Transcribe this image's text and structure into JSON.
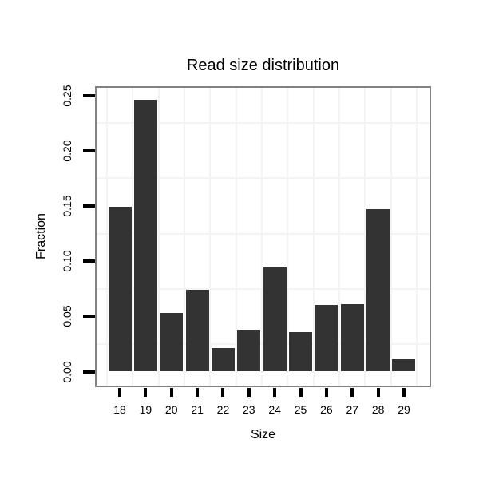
{
  "page": {
    "background_color": "#ffffff"
  },
  "chart_data": {
    "type": "bar",
    "title": "Read size distribution",
    "xlabel": "Size",
    "ylabel": "Fraction",
    "categories": [
      "18",
      "19",
      "20",
      "21",
      "22",
      "23",
      "24",
      "25",
      "26",
      "27",
      "28",
      "29"
    ],
    "values": [
      0.149,
      0.246,
      0.053,
      0.074,
      0.021,
      0.038,
      0.094,
      0.036,
      0.06,
      0.061,
      0.147,
      0.011
    ],
    "yticks": [
      0.0,
      0.05,
      0.1,
      0.15,
      0.2,
      0.25
    ],
    "ytick_labels": [
      "0.00",
      "0.05",
      "0.10",
      "0.15",
      "0.20",
      "0.25"
    ],
    "ylim": [
      -0.0137,
      0.258
    ],
    "grid": "minor gridlines only, very faint",
    "legend": "none",
    "colors": {
      "bar_fill": "#333333",
      "panel_border": "#828282",
      "panel_background": "#ffffff",
      "grid_minor": "#f4f4f4",
      "tick": "#000000",
      "text": "#000000"
    }
  }
}
